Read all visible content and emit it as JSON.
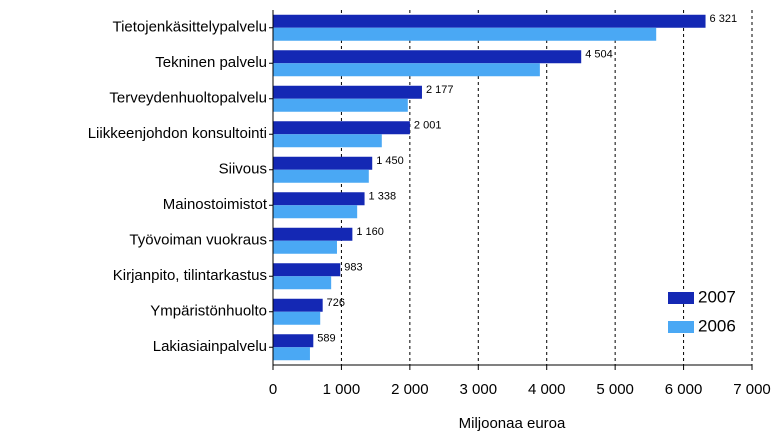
{
  "chart_data": {
    "type": "hbar",
    "xlabel": "Miljoonaa euroa",
    "categories": [
      "Tietojenkäsittelypalvelu",
      "Tekninen palvelu",
      "Terveydenhuoltopalvelu",
      "Liikkeenjohdon konsultointi",
      "Siivous",
      "Mainostoimistot",
      "Työvoiman vuokraus",
      "Kirjanpito, tilintarkastus",
      "Ympäristönhuolto",
      "Lakiasiainpalvelu"
    ],
    "series": [
      {
        "name": "2007",
        "color": "#1428b4",
        "values": [
          6321,
          4504,
          2177,
          2001,
          1450,
          1338,
          1160,
          983,
          726,
          589
        ],
        "value_labels": [
          "6 321",
          "4 504",
          "2 177",
          "2 001",
          "1 450",
          "1 338",
          "1 160",
          "983",
          "726",
          "589"
        ]
      },
      {
        "name": "2006",
        "color": "#4aa8f4",
        "values": [
          5600,
          3900,
          1970,
          1590,
          1400,
          1230,
          935,
          850,
          690,
          540
        ]
      }
    ],
    "xlim": [
      0,
      7000
    ],
    "xticks": [
      0,
      {
        "value": 1000,
        "label": "1 000"
      },
      {
        "value": 2000,
        "label": "2 000"
      },
      {
        "value": 3000,
        "label": "3 000"
      },
      {
        "value": 4000,
        "label": "4 000"
      },
      {
        "value": 5000,
        "label": "5 000"
      },
      {
        "value": 6000,
        "label": "6 000"
      },
      {
        "value": 7000,
        "label": "7 000"
      }
    ],
    "grid": true,
    "legend": "lower right"
  }
}
